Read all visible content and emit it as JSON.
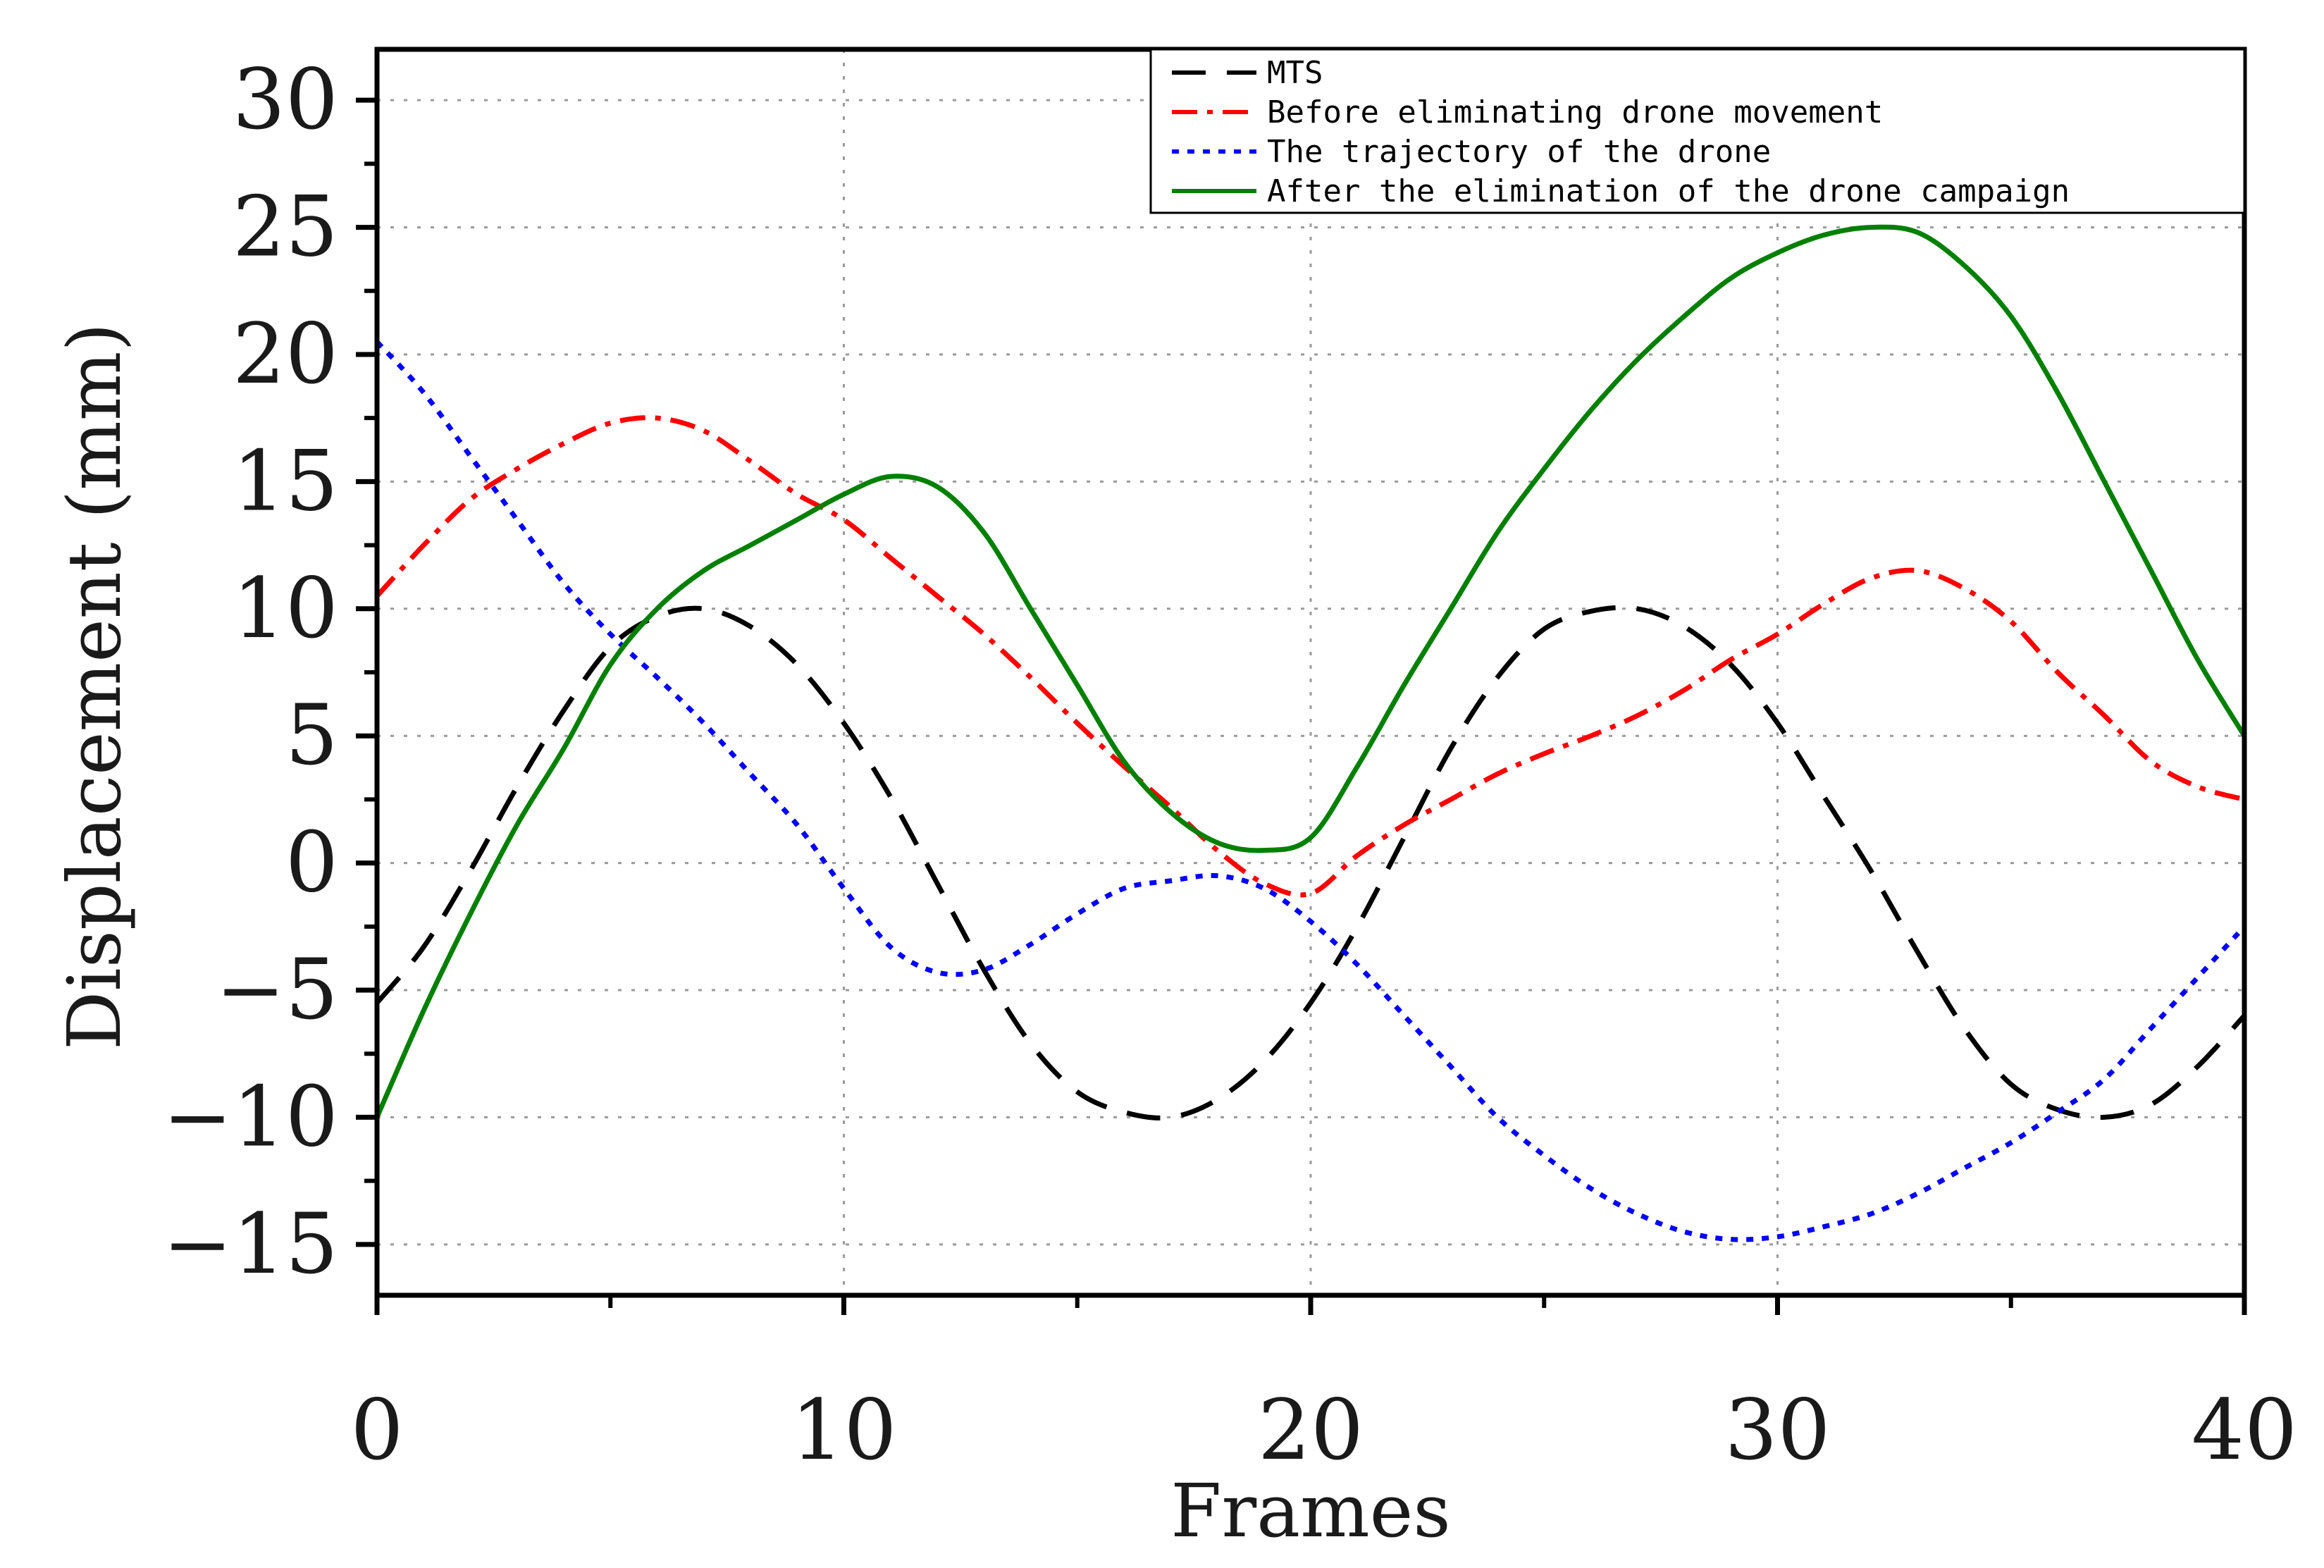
{
  "chart_data": {
    "type": "line",
    "title": "",
    "xlabel": "Frames",
    "ylabel": "Displacement (mm)",
    "xlim": [
      0,
      40
    ],
    "ylim": [
      -17,
      32
    ],
    "xticks": [
      0,
      10,
      20,
      30,
      40
    ],
    "xtick_labels": [
      "0",
      "10",
      "20",
      "30",
      "40"
    ],
    "yticks": [
      -15,
      -10,
      -5,
      0,
      5,
      10,
      15,
      20,
      25,
      30
    ],
    "ytick_labels": [
      "−15",
      "−10",
      "−5",
      "0",
      "5",
      "10",
      "15",
      "20",
      "25",
      "30"
    ],
    "grid": true,
    "legend_position": "top-right",
    "series": [
      {
        "name": "MTS",
        "color": "#000000",
        "style": "dashed",
        "x": [
          0,
          1,
          2,
          3,
          4,
          5,
          6,
          7,
          8,
          9,
          10,
          11,
          12,
          13,
          14,
          15,
          16,
          17,
          18,
          19,
          20,
          21,
          22,
          23,
          24,
          25,
          26,
          27,
          28,
          29,
          30,
          31,
          32,
          33,
          34,
          35,
          36,
          37,
          38,
          39,
          40
        ],
        "y": [
          -5.5,
          -3.3,
          -0.3,
          3.0,
          6.0,
          8.5,
          9.7,
          10.0,
          9.3,
          7.8,
          5.5,
          2.6,
          -0.8,
          -4.2,
          -7.1,
          -9.0,
          -9.8,
          -10.0,
          -9.3,
          -7.8,
          -5.5,
          -2.5,
          1.0,
          4.5,
          7.3,
          9.2,
          9.9,
          10.0,
          9.3,
          7.8,
          5.5,
          2.6,
          -0.3,
          -3.5,
          -6.5,
          -8.7,
          -9.7,
          -10.0,
          -9.5,
          -8.0,
          -6.0
        ]
      },
      {
        "name": "Before eliminating drone movement",
        "color": "#ff0000",
        "style": "dashdot",
        "x": [
          0,
          1,
          2,
          3,
          4,
          5,
          6,
          7,
          8,
          9,
          10,
          11,
          12,
          13,
          14,
          15,
          16,
          17,
          18,
          19,
          20,
          21,
          22,
          23,
          24,
          25,
          26,
          27,
          28,
          29,
          30,
          31,
          32,
          33,
          34,
          35,
          36,
          37,
          38,
          39,
          40
        ],
        "y": [
          10.5,
          12.5,
          14.3,
          15.5,
          16.5,
          17.3,
          17.5,
          17.0,
          15.8,
          14.5,
          13.5,
          12.0,
          10.5,
          9.0,
          7.3,
          5.5,
          3.8,
          2.2,
          0.5,
          -0.8,
          -1.2,
          0.3,
          1.5,
          2.5,
          3.5,
          4.3,
          5.0,
          5.8,
          6.8,
          8.0,
          9.0,
          10.2,
          11.2,
          11.5,
          10.8,
          9.5,
          7.5,
          5.8,
          4.0,
          3.0,
          2.5
        ]
      },
      {
        "name": "The trajectory of the drone",
        "color": "#0000ff",
        "style": "dotted",
        "x": [
          0,
          1,
          2,
          3,
          4,
          5,
          6,
          7,
          8,
          9,
          10,
          11,
          12,
          13,
          14,
          15,
          16,
          17,
          18,
          19,
          20,
          21,
          22,
          23,
          24,
          25,
          26,
          27,
          28,
          29,
          30,
          31,
          32,
          33,
          34,
          35,
          36,
          37,
          38,
          39,
          40
        ],
        "y": [
          20.5,
          18.5,
          16.0,
          13.5,
          11.0,
          9.0,
          7.3,
          5.5,
          3.5,
          1.5,
          -1.0,
          -3.3,
          -4.3,
          -4.2,
          -3.2,
          -2.0,
          -1.0,
          -0.7,
          -0.5,
          -1.0,
          -2.3,
          -4.0,
          -6.0,
          -8.0,
          -10.0,
          -11.5,
          -12.8,
          -13.8,
          -14.5,
          -14.8,
          -14.7,
          -14.3,
          -13.8,
          -13.0,
          -12.0,
          -11.0,
          -9.8,
          -8.5,
          -6.5,
          -4.5,
          -2.5
        ]
      },
      {
        "name": "After the elimination of the drone campaign",
        "color": "#008000",
        "style": "solid",
        "x": [
          0,
          1,
          2,
          3,
          4,
          5,
          6,
          7,
          8,
          9,
          10,
          11,
          12,
          13,
          14,
          15,
          16,
          17,
          18,
          19,
          20,
          21,
          22,
          23,
          24,
          25,
          26,
          27,
          28,
          29,
          30,
          31,
          32,
          33,
          34,
          35,
          36,
          37,
          38,
          39,
          40
        ],
        "y": [
          -10.0,
          -5.8,
          -2.0,
          1.5,
          4.5,
          7.8,
          10.0,
          11.5,
          12.5,
          13.5,
          14.5,
          15.2,
          14.8,
          13.0,
          10.0,
          7.0,
          4.0,
          2.0,
          0.8,
          0.5,
          1.0,
          3.8,
          7.0,
          10.0,
          13.0,
          15.5,
          17.8,
          19.8,
          21.5,
          23.0,
          24.0,
          24.7,
          25.0,
          24.8,
          23.5,
          21.5,
          18.5,
          15.0,
          11.5,
          8.0,
          5.0
        ]
      }
    ]
  }
}
